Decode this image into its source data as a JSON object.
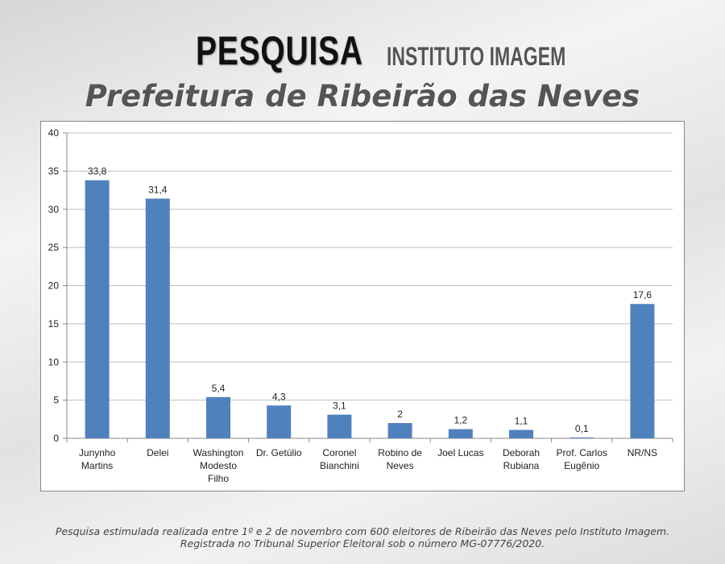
{
  "header": {
    "title": "PESQUISA",
    "institute": "INSTITUTO IMAGEM",
    "subtitle": "Prefeitura de Ribeirão das Neves"
  },
  "chart_data": {
    "type": "bar",
    "categories": [
      [
        "Junynho",
        "Martins"
      ],
      [
        "Delei"
      ],
      [
        "Washington",
        "Modesto",
        "Filho"
      ],
      [
        "Dr. Getúlio"
      ],
      [
        "Coronel",
        "Bianchini"
      ],
      [
        "Robino de",
        "Neves"
      ],
      [
        "Joel Lucas"
      ],
      [
        "Deborah",
        "Rubiana"
      ],
      [
        "Prof. Carlos",
        "Eugênio"
      ],
      [
        "NR/NS"
      ]
    ],
    "values": [
      33.8,
      31.4,
      5.4,
      4.3,
      3.1,
      2,
      1.2,
      1.1,
      0.1,
      17.6
    ],
    "data_labels": [
      "33,8",
      "31,4",
      "5,4",
      "4,3",
      "3,1",
      "2",
      "1,2",
      "1,1",
      "0,1",
      "17,6"
    ],
    "ylim": [
      0,
      40
    ],
    "yticks": [
      0,
      5,
      10,
      15,
      20,
      25,
      30,
      35,
      40
    ],
    "grid": true,
    "bar_color": "#4f81bd"
  },
  "footer": {
    "line1": "Pesquisa estimulada realizada entre 1º e 2 de novembro com 600 eleitores de Ribeirão das Neves pelo Instituto Imagem.",
    "line2": "Registrada no Tribunal Superior Eleitoral sob o número MG-07776/2020."
  }
}
